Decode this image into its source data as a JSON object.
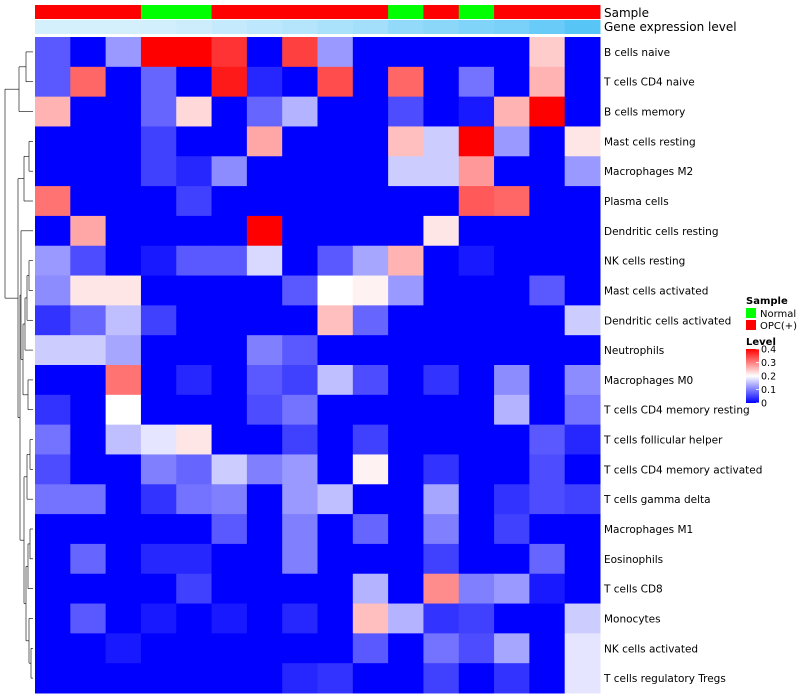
{
  "chart_data": {
    "type": "heatmap",
    "annotation_labels": {
      "sample": "Sample",
      "expression": "Gene expression level"
    },
    "columns": [
      {
        "sample": "OPC(+)",
        "expr": 0.2
      },
      {
        "sample": "OPC(+)",
        "expr": 0.2
      },
      {
        "sample": "OPC(+)",
        "expr": 0.2
      },
      {
        "sample": "Normal",
        "expr": 0.22
      },
      {
        "sample": "Normal",
        "expr": 0.25
      },
      {
        "sample": "OPC(+)",
        "expr": 0.3
      },
      {
        "sample": "OPC(+)",
        "expr": 0.35
      },
      {
        "sample": "OPC(+)",
        "expr": 0.4
      },
      {
        "sample": "OPC(+)",
        "expr": 0.45
      },
      {
        "sample": "OPC(+)",
        "expr": 0.5
      },
      {
        "sample": "Normal",
        "expr": 0.6
      },
      {
        "sample": "OPC(+)",
        "expr": 0.65
      },
      {
        "sample": "Normal",
        "expr": 0.7
      },
      {
        "sample": "OPC(+)",
        "expr": 0.75
      },
      {
        "sample": "OPC(+)",
        "expr": 0.85
      },
      {
        "sample": "OPC(+)",
        "expr": 0.95
      }
    ],
    "expression_colors": [
      "#f7fbff",
      "#4fc3f7"
    ],
    "rows": [
      "B cells naive",
      "T cells CD4 naive",
      "B cells memory",
      "Mast cells resting",
      "Macrophages M2",
      "Plasma cells",
      "Dendritic cells resting",
      "NK cells resting",
      "Mast cells activated",
      "Dendritic cells activated",
      "Neutrophils",
      "Macrophages M0",
      "T cells CD4 memory resting",
      "T cells follicular helper",
      "T cells CD4 memory activated",
      "T cells gamma delta",
      "Macrophages M1",
      "Eosinophils",
      "T cells CD8",
      "Monocytes",
      "NK cells activated",
      "T cells regulatory  Tregs"
    ],
    "values": [
      [
        0.07,
        0.0,
        0.12,
        0.4,
        0.4,
        0.36,
        0.0,
        0.35,
        0.12,
        0.0,
        0.0,
        0.0,
        0.0,
        0.0,
        0.24,
        0.0
      ],
      [
        0.07,
        0.32,
        0.0,
        0.08,
        0.0,
        0.38,
        0.03,
        0.0,
        0.34,
        0.0,
        0.32,
        0.0,
        0.09,
        0.0,
        0.26,
        0.0
      ],
      [
        0.26,
        0.0,
        0.0,
        0.08,
        0.23,
        0.0,
        0.08,
        0.14,
        0.0,
        0.0,
        0.06,
        0.0,
        0.02,
        0.26,
        0.4,
        0.0
      ],
      [
        0.0,
        0.0,
        0.0,
        0.05,
        0.0,
        0.0,
        0.27,
        0.0,
        0.0,
        0.0,
        0.25,
        0.16,
        0.4,
        0.12,
        0.0,
        0.22
      ],
      [
        0.0,
        0.0,
        0.0,
        0.05,
        0.03,
        0.11,
        0.0,
        0.0,
        0.0,
        0.0,
        0.16,
        0.16,
        0.28,
        0.0,
        0.0,
        0.12
      ],
      [
        0.31,
        0.0,
        0.0,
        0.0,
        0.05,
        0.0,
        0.0,
        0.0,
        0.0,
        0.0,
        0.0,
        0.0,
        0.33,
        0.32,
        0.0,
        0.0
      ],
      [
        0.0,
        0.27,
        0.0,
        0.0,
        0.0,
        0.0,
        0.4,
        0.0,
        0.0,
        0.0,
        0.0,
        0.22,
        0.0,
        0.0,
        0.0,
        0.0
      ],
      [
        0.12,
        0.06,
        0.0,
        0.02,
        0.07,
        0.07,
        0.17,
        0.0,
        0.07,
        0.13,
        0.26,
        0.0,
        0.02,
        0.0,
        0.0,
        0.0
      ],
      [
        0.11,
        0.22,
        0.22,
        0.0,
        0.0,
        0.0,
        0.0,
        0.07,
        0.2,
        0.21,
        0.12,
        0.0,
        0.0,
        0.0,
        0.07,
        0.0
      ],
      [
        0.04,
        0.08,
        0.15,
        0.05,
        0.0,
        0.0,
        0.0,
        0.0,
        0.25,
        0.08,
        0.0,
        0.0,
        0.0,
        0.0,
        0.0,
        0.16
      ],
      [
        0.16,
        0.16,
        0.13,
        0.0,
        0.0,
        0.0,
        0.1,
        0.07,
        0.0,
        0.0,
        0.0,
        0.0,
        0.0,
        0.0,
        0.0,
        0.0
      ],
      [
        0.0,
        0.0,
        0.31,
        0.0,
        0.03,
        0.0,
        0.07,
        0.05,
        0.15,
        0.06,
        0.0,
        0.04,
        0.0,
        0.11,
        0.0,
        0.11
      ],
      [
        0.04,
        0.0,
        0.2,
        0.0,
        0.0,
        0.0,
        0.06,
        0.09,
        0.0,
        0.0,
        0.0,
        0.0,
        0.0,
        0.14,
        0.0,
        0.09
      ],
      [
        0.09,
        0.0,
        0.15,
        0.18,
        0.22,
        0.0,
        0.0,
        0.05,
        0.0,
        0.05,
        0.0,
        0.0,
        0.0,
        0.0,
        0.07,
        0.03
      ],
      [
        0.06,
        0.0,
        0.0,
        0.1,
        0.08,
        0.16,
        0.1,
        0.12,
        0.0,
        0.21,
        0.0,
        0.04,
        0.0,
        0.0,
        0.06,
        0.0
      ],
      [
        0.09,
        0.09,
        0.0,
        0.04,
        0.09,
        0.1,
        0.0,
        0.12,
        0.15,
        0.0,
        0.0,
        0.13,
        0.0,
        0.04,
        0.06,
        0.05
      ],
      [
        0.0,
        0.0,
        0.0,
        0.0,
        0.0,
        0.07,
        0.0,
        0.1,
        0.0,
        0.08,
        0.0,
        0.1,
        0.0,
        0.05,
        0.0,
        0.0
      ],
      [
        0.0,
        0.08,
        0.0,
        0.03,
        0.03,
        0.0,
        0.0,
        0.1,
        0.0,
        0.0,
        0.0,
        0.05,
        0.0,
        0.0,
        0.08,
        0.0
      ],
      [
        0.0,
        0.0,
        0.0,
        0.0,
        0.05,
        0.0,
        0.0,
        0.0,
        0.0,
        0.14,
        0.0,
        0.29,
        0.1,
        0.12,
        0.02,
        0.0
      ],
      [
        0.0,
        0.07,
        0.0,
        0.02,
        0.0,
        0.02,
        0.0,
        0.03,
        0.0,
        0.25,
        0.14,
        0.04,
        0.05,
        0.0,
        0.0,
        0.16
      ],
      [
        0.0,
        0.0,
        0.02,
        0.0,
        0.0,
        0.0,
        0.0,
        0.0,
        0.0,
        0.07,
        0.0,
        0.09,
        0.06,
        0.13,
        0.0,
        0.18
      ],
      [
        0.0,
        0.0,
        0.0,
        0.0,
        0.0,
        0.0,
        0.0,
        0.03,
        0.04,
        0.0,
        0.0,
        0.05,
        0.0,
        0.04,
        0.0,
        0.18
      ]
    ],
    "color_scale": {
      "min": 0,
      "mid": 0.2,
      "max": 0.4,
      "low": "#0000ff",
      "midColor": "#ffffff",
      "high": "#ff0000"
    },
    "legend": {
      "sample_title": "Sample",
      "sample_items": [
        {
          "label": "Normal",
          "color": "#00ff00"
        },
        {
          "label": "OPC(+)",
          "color": "#ff0000"
        }
      ],
      "level_title": "Level",
      "level_ticks": [
        "0.4",
        "0.3",
        "0.2",
        "0.1",
        "0"
      ],
      "level_tick_values": [
        0.4,
        0.3,
        0.2,
        0.1,
        0.0
      ],
      "placement": "right"
    },
    "dendrogram": "row clustering tree on left"
  }
}
